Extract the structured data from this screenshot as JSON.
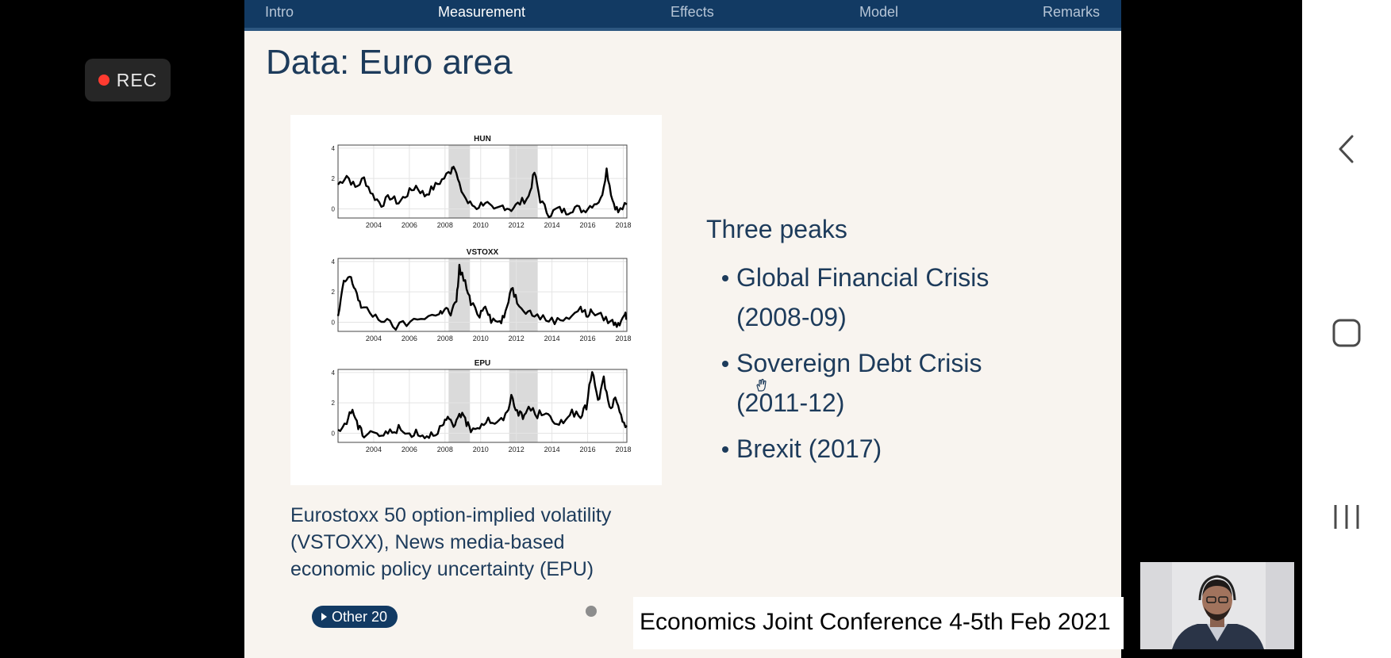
{
  "recording": {
    "label": "REC"
  },
  "slide": {
    "nav": [
      "Intro",
      "Measurement",
      "Effects",
      "Model",
      "Remarks"
    ],
    "active_nav": "Measurement",
    "title": "Data: Euro area",
    "figure": {
      "panels": [
        "HUN",
        "VSTOXX",
        "EPU"
      ],
      "x_ticks": [
        "2004",
        "2006",
        "2008",
        "2010",
        "2012",
        "2014",
        "2016",
        "2018"
      ],
      "y_ticks": [
        "4",
        "2",
        "0"
      ]
    },
    "caption_lines": [
      "Eurostoxx 50 option-implied volatility",
      "(VSTOXX), News media-based",
      "economic policy uncertainty (EPU)"
    ],
    "bullets_title": "Three peaks",
    "bullets": [
      {
        "line1": "Global Financial Crisis",
        "line2": "(2008-09)"
      },
      {
        "line1": "Sovereign Debt Crisis",
        "line2": "(2011-12)"
      },
      {
        "line1": "Brexit (2017)",
        "line2": ""
      }
    ],
    "other_button": "Other 20"
  },
  "banner": {
    "text": "Economics Joint Conference 4-5th Feb 2021"
  },
  "colors": {
    "navbar": "#123a63",
    "slide_bg": "#f8f4ef",
    "text": "#1d3b5b"
  },
  "icons": [
    "record-dot-icon",
    "back-icon",
    "home-icon",
    "recents-icon",
    "cursor-hand-icon"
  ]
}
